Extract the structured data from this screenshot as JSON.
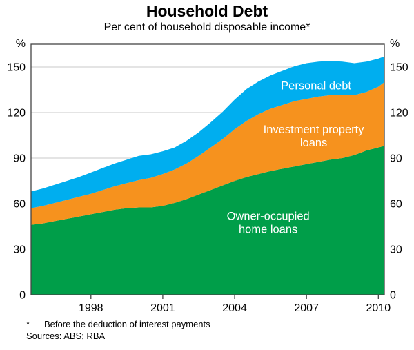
{
  "chart_data": {
    "type": "area",
    "stacked": true,
    "title": "Household Debt",
    "subtitle": "Per cent of household disposable income*",
    "y_unit": "%",
    "ylim": [
      0,
      165
    ],
    "yticks": [
      0,
      30,
      60,
      90,
      120,
      150
    ],
    "xlim": [
      1995.5,
      2010.25
    ],
    "xticks": [
      1998,
      2001,
      2004,
      2007,
      2010
    ],
    "grid": true,
    "legend": "in-plot labels",
    "x": [
      1995.5,
      1996,
      1996.5,
      1997,
      1997.5,
      1998,
      1998.5,
      1999,
      1999.5,
      2000,
      2000.5,
      2001,
      2001.5,
      2002,
      2002.5,
      2003,
      2003.5,
      2004,
      2004.5,
      2005,
      2005.5,
      2006,
      2006.5,
      2007,
      2007.5,
      2008,
      2008.5,
      2009,
      2009.5,
      2010,
      2010.25
    ],
    "series": [
      {
        "name": "Owner-occupied home loans",
        "color": "#009E49",
        "values": [
          46,
          47,
          48.5,
          50,
          51.5,
          53,
          54.5,
          56,
          57,
          57.5,
          57.5,
          58.5,
          60.5,
          63,
          66,
          69,
          72,
          75,
          77.5,
          79.5,
          81.5,
          83,
          84.5,
          86,
          87.5,
          89,
          90,
          92,
          95,
          97,
          98
        ]
      },
      {
        "name": "Investment property loans",
        "color": "#F6921E",
        "values": [
          11,
          11.5,
          12,
          12.5,
          13,
          13.5,
          14.5,
          15.5,
          16.5,
          18,
          19.5,
          21,
          22,
          23.5,
          25.5,
          28,
          30.5,
          34,
          37,
          39.5,
          41,
          42,
          43,
          43,
          43,
          42.5,
          41.5,
          39.5,
          38.5,
          40,
          42
        ]
      },
      {
        "name": "Personal debt",
        "color": "#00AEEF",
        "values": [
          11,
          11.5,
          12,
          12.5,
          13,
          14,
          14.5,
          15,
          15.5,
          16,
          15.5,
          15,
          14.5,
          15,
          15.5,
          16.5,
          18,
          19.5,
          21,
          21.5,
          22,
          22.5,
          23,
          23.5,
          23,
          22.5,
          22,
          21,
          20,
          18.5,
          17
        ]
      }
    ],
    "annotations": [
      {
        "lines": [
          "Personal debt"
        ],
        "x": 2007.4,
        "y": 138,
        "color": "#ffffff"
      },
      {
        "lines": [
          "Investment property",
          "loans"
        ],
        "x": 2007.3,
        "y": 105,
        "color": "#ffffff"
      },
      {
        "lines": [
          "Owner-occupied",
          "home loans"
        ],
        "x": 2005.4,
        "y": 48,
        "color": "#ffffff"
      }
    ],
    "footnote_marker": "*",
    "footnote_text": "Before the deduction of interest payments",
    "sources": "Sources: ABS; RBA",
    "colors": {
      "gridline": "#c8c8c8",
      "axis": "#444444",
      "text": "#000000"
    }
  }
}
